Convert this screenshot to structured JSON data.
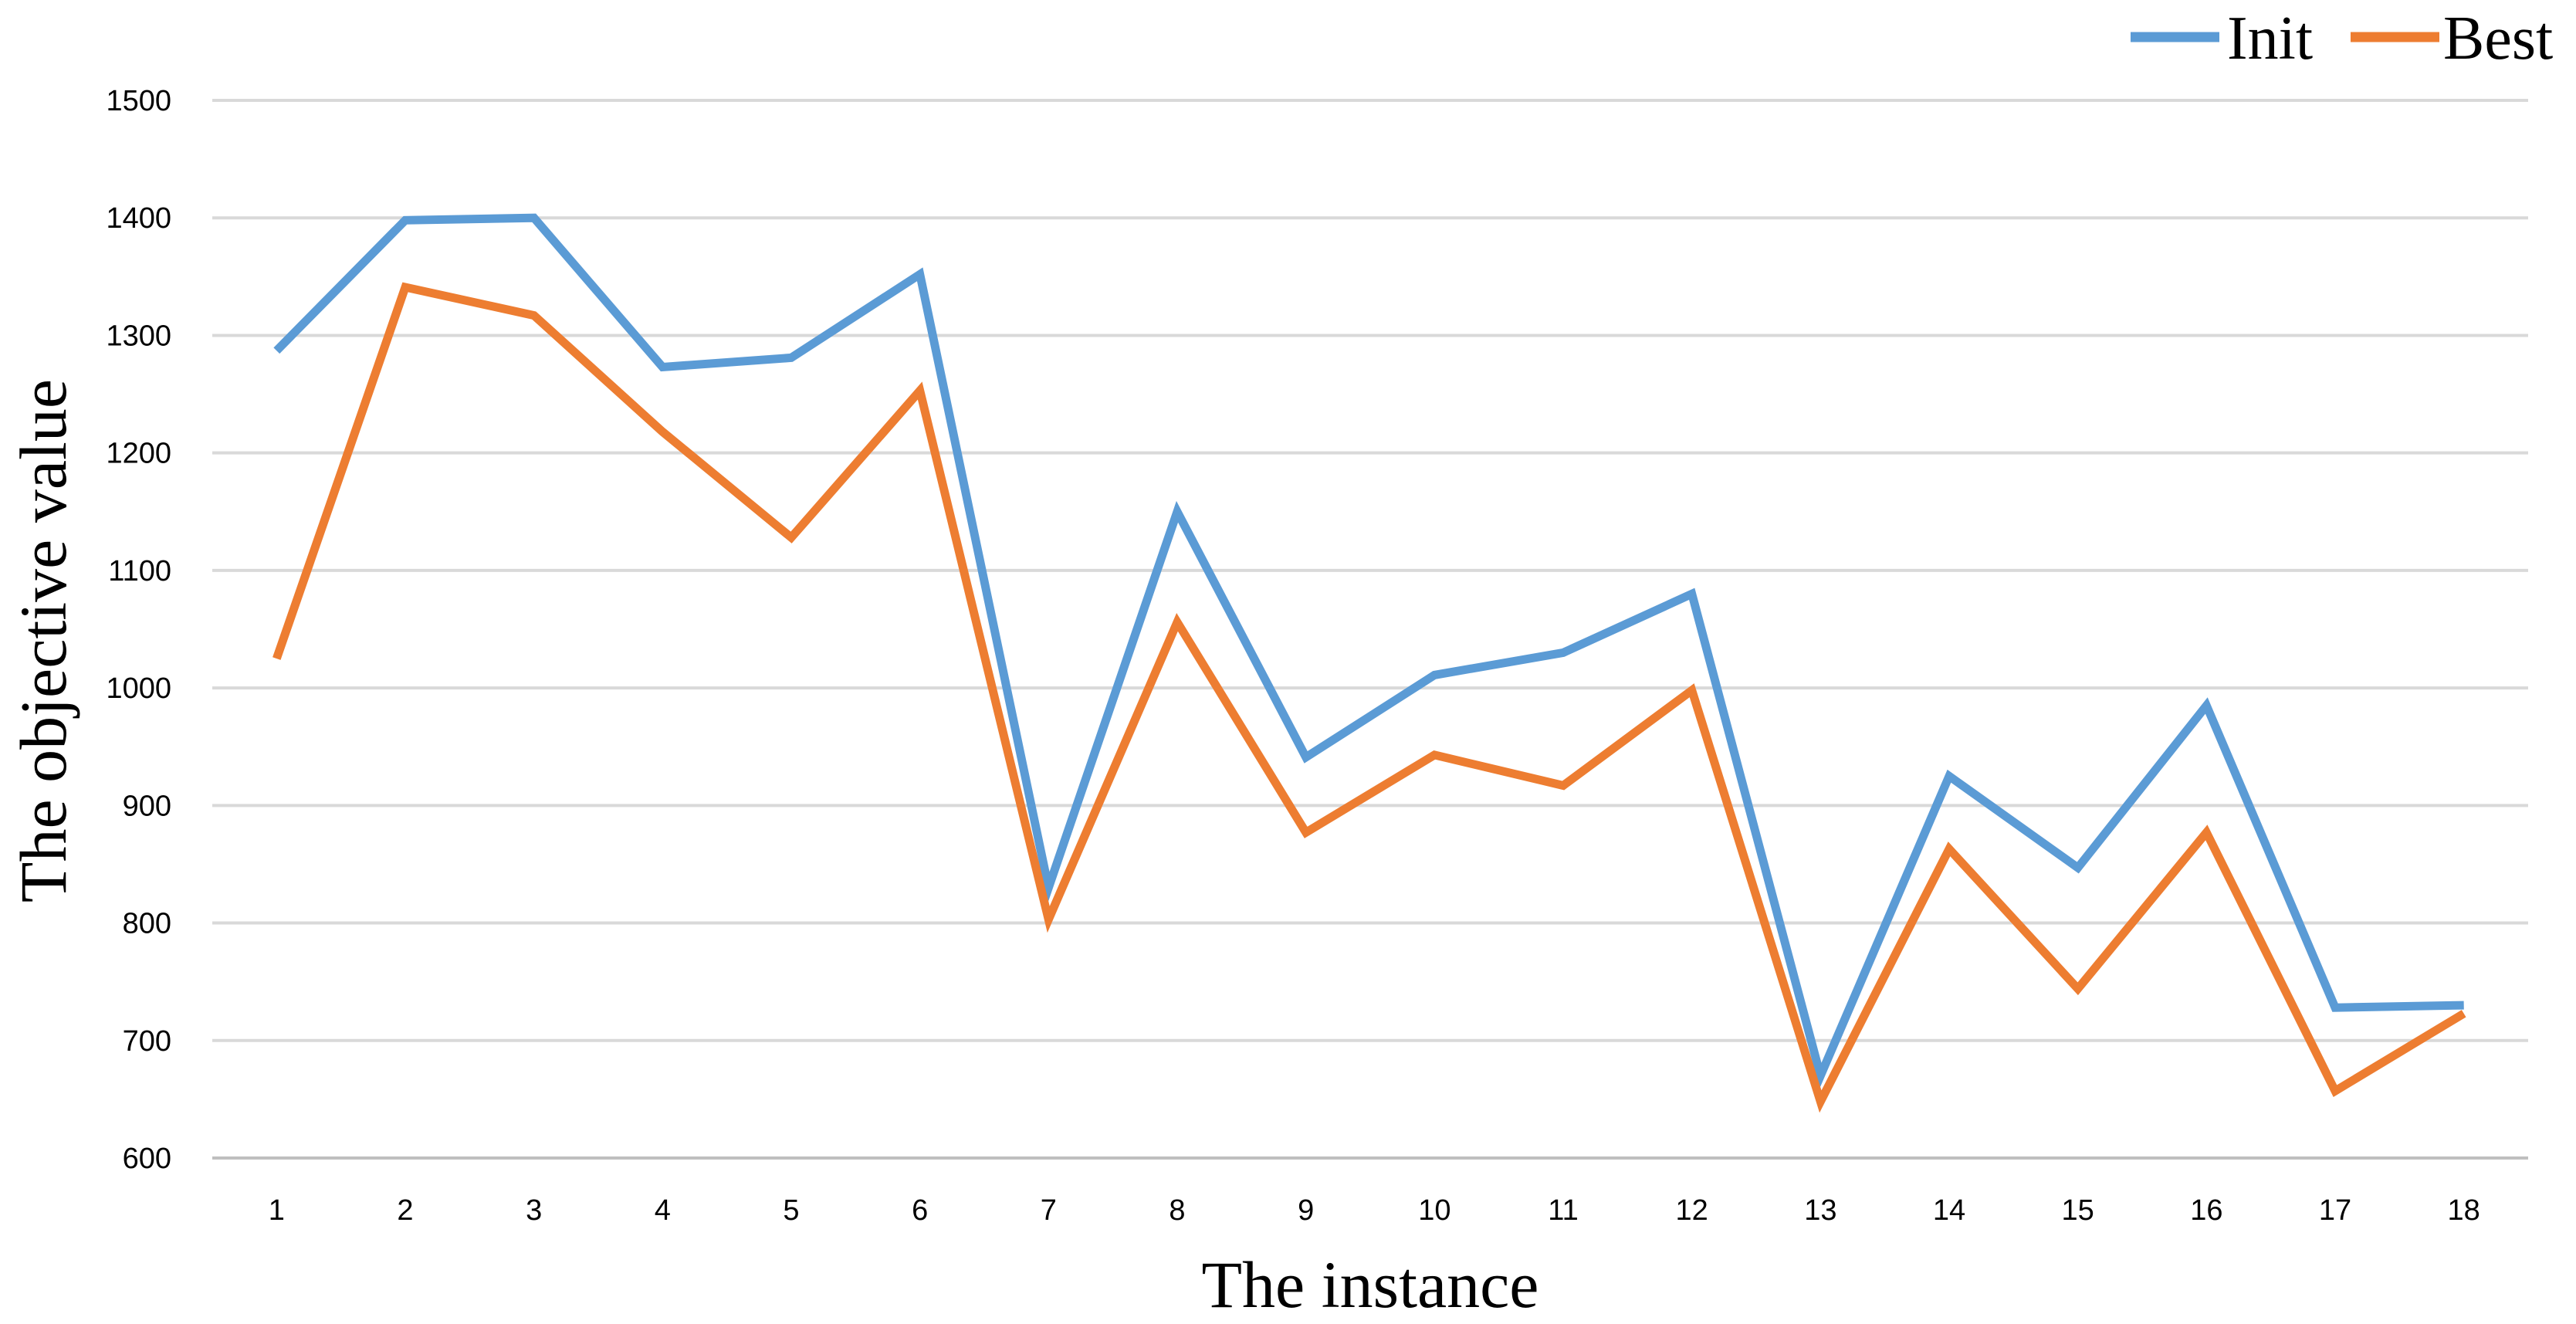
{
  "chart_data": {
    "type": "line",
    "title": "",
    "xlabel": "The  instance",
    "ylabel": "The objective value",
    "categories": [
      "1",
      "2",
      "3",
      "4",
      "5",
      "6",
      "7",
      "8",
      "9",
      "10",
      "11",
      "12",
      "13",
      "14",
      "15",
      "16",
      "17",
      "18"
    ],
    "ylim": [
      600,
      1500
    ],
    "yticks": [
      600,
      700,
      800,
      900,
      1000,
      1100,
      1200,
      1300,
      1400,
      1500
    ],
    "grid": true,
    "legend_position": "top-right",
    "series": [
      {
        "name": "Init",
        "color": "#5B9BD5",
        "values": [
          1287,
          1398,
          1400,
          1273,
          1281,
          1352,
          830,
          1150,
          941,
          1011,
          1030,
          1080,
          670,
          925,
          847,
          985,
          728,
          730
        ]
      },
      {
        "name": "Best",
        "color": "#ED7D31",
        "values": [
          1025,
          1341,
          1317,
          1218,
          1128,
          1253,
          803,
          1056,
          877,
          943,
          917,
          998,
          648,
          863,
          744,
          877,
          657,
          723
        ]
      }
    ]
  }
}
